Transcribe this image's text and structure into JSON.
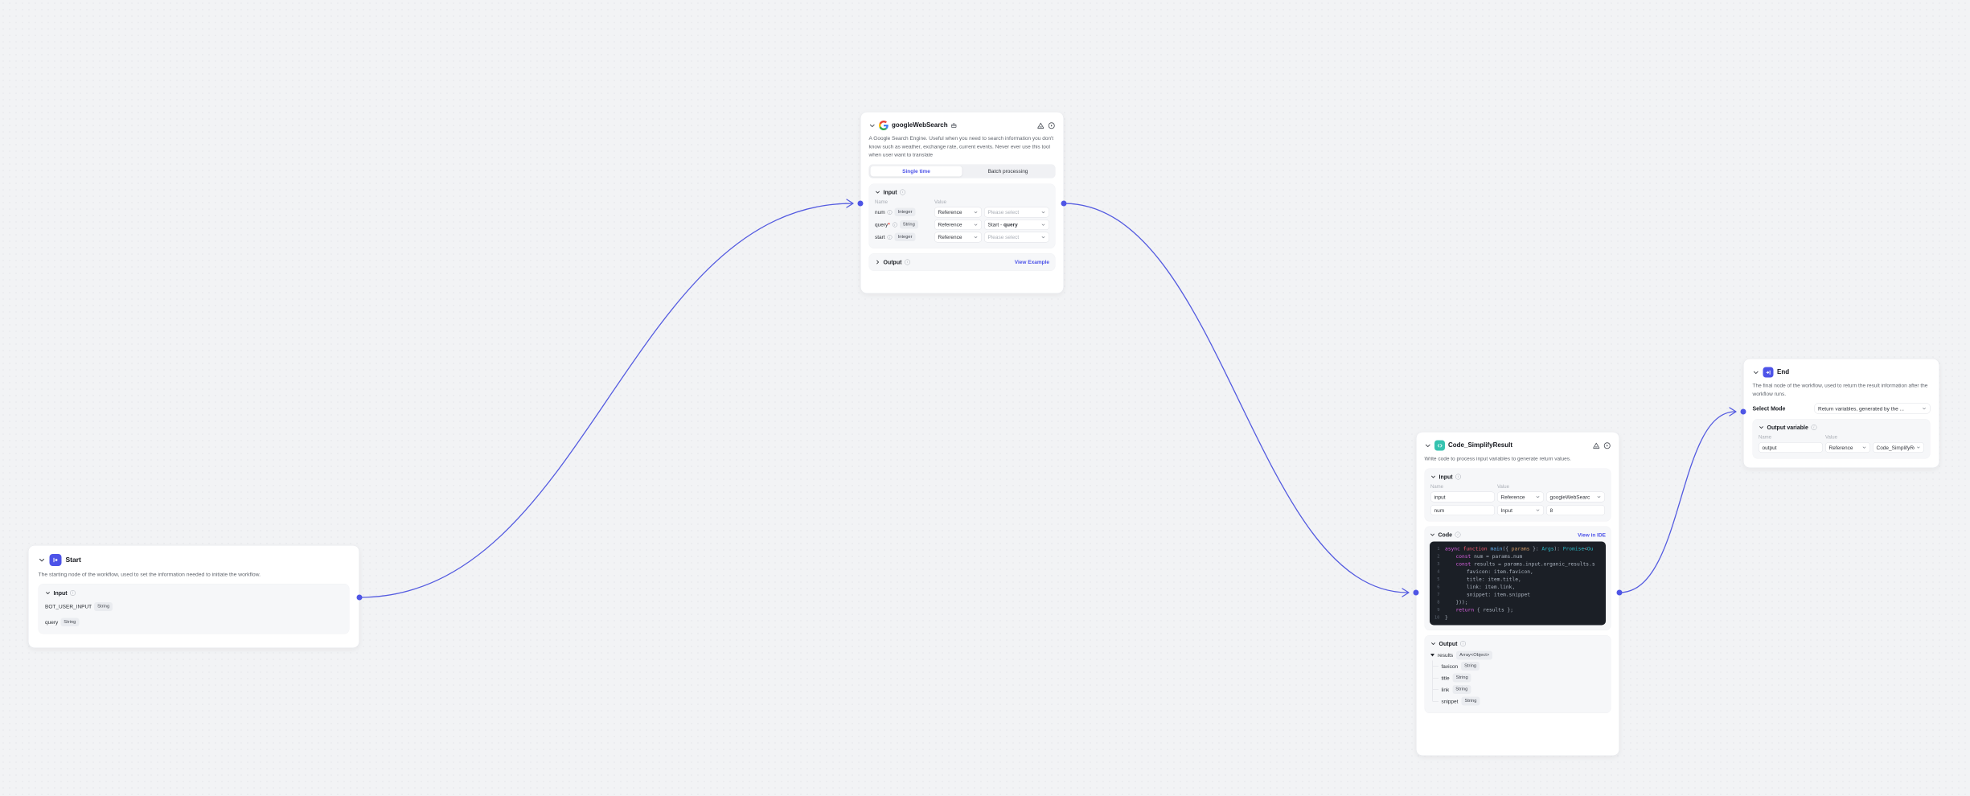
{
  "canvas": {
    "background": "#f2f3f5",
    "connector_color": "#545be0",
    "port_color": "#4e55e5",
    "accent_blue": "#4d53e8"
  },
  "nodes": {
    "start": {
      "title": "Start",
      "description": "The starting node of the workflow, used to set the information needed to initiate the workflow.",
      "input_section": {
        "label": "Input",
        "rows": [
          {
            "name": "BOT_USER_INPUT",
            "type": "String"
          },
          {
            "name": "query",
            "type": "String"
          }
        ]
      }
    },
    "google_web_search": {
      "title": "googleWebSearch",
      "description": "A Google Search Engine. Useful when you need to search information you don't know such as weather, exchange rate, current events. Never ever use this tool when user want to translate",
      "tabs": {
        "single": "Single time",
        "batch": "Batch processing"
      },
      "input_section": {
        "label": "Input",
        "name_col": "Name",
        "value_col": "Value",
        "rows": [
          {
            "name": "num",
            "type": "Integer",
            "ref": "Reference",
            "value": "Please select"
          },
          {
            "name": "query",
            "required": "*",
            "type": "String",
            "ref": "Reference",
            "value_prefix": "Start - ",
            "value_bold": "query"
          },
          {
            "name": "start",
            "type": "Integer",
            "ref": "Reference",
            "value": "Please select"
          }
        ]
      },
      "output_section": {
        "label": "Output",
        "link": "View Example"
      }
    },
    "code": {
      "title": "Code_SimplifyResult",
      "description": "Write code to process input variables to generate return values.",
      "input_section": {
        "label": "Input",
        "name_col": "Name",
        "value_col": "Value",
        "rows": [
          {
            "name": "input",
            "ref": "Reference",
            "value": "googleWebSearc"
          },
          {
            "name": "num",
            "ref": "Input",
            "value": "8"
          }
        ]
      },
      "code_section": {
        "label": "Code",
        "link": "View in IDE",
        "lines": [
          {
            "n": "1",
            "ind": 0,
            "tokens": [
              [
                "kw",
                "async "
              ],
              [
                "kw2",
                "function "
              ],
              [
                "fn",
                "main"
              ],
              [
                "pl",
                "({ "
              ],
              [
                "pa",
                "params"
              ],
              [
                "pl",
                " }: "
              ],
              [
                "ty",
                "Args"
              ],
              [
                "pl",
                "): "
              ],
              [
                "ty",
                "Promise"
              ],
              [
                "pl",
                "<"
              ],
              [
                "ty",
                "Ou"
              ]
            ]
          },
          {
            "n": "2",
            "ind": 1,
            "tokens": [
              [
                "kw",
                "const "
              ],
              [
                "pl",
                "num = params.num"
              ]
            ]
          },
          {
            "n": "3",
            "ind": 1,
            "tokens": [
              [
                "kw",
                "const "
              ],
              [
                "pl",
                "results = params.input.organic_results.s"
              ]
            ]
          },
          {
            "n": "4",
            "ind": 2,
            "tokens": [
              [
                "pl",
                "favicon: item.favicon,"
              ]
            ]
          },
          {
            "n": "5",
            "ind": 2,
            "tokens": [
              [
                "pl",
                "title: item.title,"
              ]
            ]
          },
          {
            "n": "6",
            "ind": 2,
            "tokens": [
              [
                "pl",
                "link: item.link,"
              ]
            ]
          },
          {
            "n": "7",
            "ind": 2,
            "tokens": [
              [
                "pl",
                "snippet: item.snippet"
              ]
            ]
          },
          {
            "n": "8",
            "ind": 1,
            "tokens": [
              [
                "pl",
                "}));"
              ]
            ]
          },
          {
            "n": "9",
            "ind": 1,
            "tokens": [
              [
                "kw",
                "return "
              ],
              [
                "pl",
                "{ results };"
              ]
            ]
          },
          {
            "n": "10",
            "ind": 0,
            "tokens": [
              [
                "pl",
                "}"
              ]
            ]
          }
        ]
      },
      "output_section": {
        "label": "Output",
        "root": {
          "name": "results",
          "type": "Array<Object>"
        },
        "children": [
          {
            "name": "favicon",
            "type": "String"
          },
          {
            "name": "title",
            "type": "String"
          },
          {
            "name": "link",
            "type": "String"
          },
          {
            "name": "snippet",
            "type": "String"
          }
        ]
      }
    },
    "end": {
      "title": "End",
      "description": "The final node of the workflow, used to return the result information after the workflow runs.",
      "select_mode": {
        "label": "Select Mode",
        "value": "Return variables, generated by the ..."
      },
      "output_variable": {
        "label": "Output variable",
        "name_col": "Name",
        "value_col": "Value",
        "rows": [
          {
            "name": "output",
            "ref": "Reference",
            "value": "Code_SimplifyRe"
          }
        ]
      }
    }
  }
}
